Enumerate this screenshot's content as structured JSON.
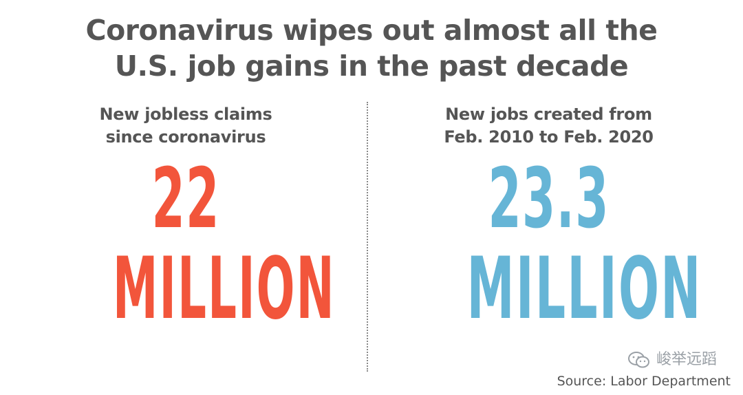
{
  "chart_data": {
    "type": "table",
    "title": "Coronavirus wipes out almost all the U.S. job gains in the past decade",
    "title_lines": [
      "Coronavirus wipes out almost all the",
      "U.S. job gains in the past decade"
    ],
    "columns": [
      {
        "label_lines": [
          "New jobless claims",
          "since coronavirus"
        ],
        "value": 22,
        "value_text": "22",
        "unit": "MILLION",
        "color": "#f2553b"
      },
      {
        "label_lines": [
          "New jobs created from",
          "Feb. 2010 to Feb. 2020"
        ],
        "value": 23.3,
        "value_text": "23.3",
        "unit": "MILLION",
        "color": "#66b5d6"
      }
    ],
    "source": "Source: Labor Department"
  },
  "watermark": {
    "text": "峻举远蹈",
    "icon": "wechat-icon"
  }
}
